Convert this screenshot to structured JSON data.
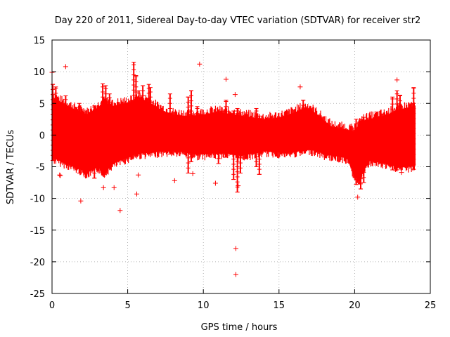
{
  "chart_data": {
    "type": "scatter",
    "title": "Day 220 of 2011, Sidereal Day-to-day VTEC variation (SDTVAR) for receiver str2",
    "xlabel": "GPS time / hours",
    "ylabel": "SDTVAR / TECUs",
    "xlim": [
      0,
      25
    ],
    "ylim": [
      -25,
      15
    ],
    "xticks": [
      0,
      5,
      10,
      15,
      20,
      25
    ],
    "yticks": [
      -25,
      -20,
      -15,
      -10,
      -5,
      0,
      5,
      10,
      15
    ],
    "grid": true,
    "marker": "+",
    "color": "#ff0000",
    "envelope": {
      "x": [
        0,
        0.5,
        1,
        1.5,
        2,
        2.3,
        2.6,
        3,
        3.3,
        3.5,
        3.8,
        4,
        4.5,
        5,
        5.5,
        6,
        6.5,
        7,
        7.5,
        8,
        8.5,
        9,
        9.5,
        10,
        10.5,
        11,
        11.5,
        12,
        12.5,
        13,
        13.5,
        14,
        14.5,
        15,
        15.5,
        16,
        16.5,
        17,
        17.5,
        18,
        18.5,
        19,
        19.5,
        20,
        20.3,
        20.6,
        21,
        21.5,
        22,
        22.5,
        23,
        23.5,
        24
      ],
      "upper": [
        6.0,
        5.2,
        4.6,
        4.0,
        3.5,
        3.2,
        3.6,
        4.2,
        4.8,
        5.0,
        4.8,
        4.5,
        4.8,
        5.0,
        5.4,
        5.6,
        5.0,
        4.2,
        3.6,
        3.2,
        3.0,
        3.0,
        3.0,
        3.2,
        3.4,
        3.5,
        3.4,
        3.2,
        3.0,
        2.8,
        2.6,
        2.4,
        2.5,
        2.7,
        3.0,
        3.5,
        4.0,
        4.2,
        3.2,
        2.2,
        1.2,
        1.0,
        0.8,
        0.5,
        1.5,
        2.2,
        2.5,
        2.8,
        3.0,
        3.5,
        4.0,
        4.2,
        4.6
      ],
      "lower": [
        -3.5,
        -4.0,
        -4.5,
        -5.0,
        -5.5,
        -6.0,
        -5.5,
        -5.0,
        -5.5,
        -5.8,
        -5.0,
        -4.5,
        -4.0,
        -3.5,
        -3.0,
        -2.8,
        -2.8,
        -2.6,
        -2.5,
        -2.5,
        -2.6,
        -2.7,
        -3.0,
        -3.0,
        -2.9,
        -2.8,
        -2.8,
        -3.0,
        -3.2,
        -3.0,
        -2.8,
        -2.5,
        -2.6,
        -2.7,
        -2.8,
        -2.6,
        -2.5,
        -2.2,
        -2.5,
        -3.0,
        -3.2,
        -3.4,
        -3.6,
        -6.5,
        -7.0,
        -5.5,
        -4.0,
        -4.2,
        -4.5,
        -4.8,
        -5.0,
        -5.0,
        -4.8
      ]
    },
    "spikes": [
      {
        "x": 0.05,
        "lo": -4.0,
        "hi": 8.0
      },
      {
        "x": 0.25,
        "lo": -3.0,
        "hi": 7.6
      },
      {
        "x": 0.9,
        "lo": -4.0,
        "hi": 6.2
      },
      {
        "x": 1.8,
        "lo": -6.0,
        "hi": 5.0
      },
      {
        "x": 2.8,
        "lo": -6.8,
        "hi": 4.6
      },
      {
        "x": 3.35,
        "lo": -6.0,
        "hi": 8.1
      },
      {
        "x": 3.55,
        "lo": -5.5,
        "hi": 7.8
      },
      {
        "x": 3.8,
        "lo": -4.5,
        "hi": 6.5
      },
      {
        "x": 5.4,
        "lo": -2.5,
        "hi": 11.5
      },
      {
        "x": 5.55,
        "lo": -2.8,
        "hi": 9.4
      },
      {
        "x": 5.75,
        "lo": -3.0,
        "hi": 7.0
      },
      {
        "x": 6.0,
        "lo": -2.6,
        "hi": 7.8
      },
      {
        "x": 6.4,
        "lo": -3.0,
        "hi": 8.0
      },
      {
        "x": 6.5,
        "lo": -2.8,
        "hi": 7.5
      },
      {
        "x": 7.8,
        "lo": -3.0,
        "hi": 6.5
      },
      {
        "x": 9.0,
        "lo": -6.0,
        "hi": 6.0
      },
      {
        "x": 9.2,
        "lo": -4.2,
        "hi": 7.0
      },
      {
        "x": 9.6,
        "lo": -3.0,
        "hi": 4.5
      },
      {
        "x": 11.0,
        "lo": -4.5,
        "hi": 4.0
      },
      {
        "x": 11.5,
        "lo": -3.5,
        "hi": 5.5
      },
      {
        "x": 12.0,
        "lo": -7.0,
        "hi": 3.8
      },
      {
        "x": 12.25,
        "lo": -9.0,
        "hi": 4.2
      },
      {
        "x": 12.45,
        "lo": -6.0,
        "hi": 3.5
      },
      {
        "x": 13.5,
        "lo": -5.0,
        "hi": 4.2
      },
      {
        "x": 13.7,
        "lo": -6.2,
        "hi": 3.0
      },
      {
        "x": 16.6,
        "lo": -2.5,
        "hi": 5.5
      },
      {
        "x": 20.1,
        "lo": -7.8,
        "hi": 2.5
      },
      {
        "x": 20.4,
        "lo": -8.5,
        "hi": 2.2
      },
      {
        "x": 20.6,
        "lo": -7.5,
        "hi": 2.8
      },
      {
        "x": 22.5,
        "lo": -5.5,
        "hi": 6.0
      },
      {
        "x": 22.8,
        "lo": -5.5,
        "hi": 7.0
      },
      {
        "x": 23.0,
        "lo": -5.0,
        "hi": 6.3
      },
      {
        "x": 23.9,
        "lo": -5.4,
        "hi": 7.5
      }
    ],
    "outliers": [
      {
        "x": 0.9,
        "y": 10.8
      },
      {
        "x": 0.0,
        "y": 9.9
      },
      {
        "x": 0.5,
        "y": -6.3
      },
      {
        "x": 0.55,
        "y": -6.4
      },
      {
        "x": 1.9,
        "y": -10.4
      },
      {
        "x": 3.4,
        "y": -8.3
      },
      {
        "x": 4.1,
        "y": -8.3
      },
      {
        "x": 4.5,
        "y": -11.9
      },
      {
        "x": 5.6,
        "y": -9.3
      },
      {
        "x": 5.7,
        "y": -6.3
      },
      {
        "x": 8.1,
        "y": -7.2
      },
      {
        "x": 9.3,
        "y": -6.1
      },
      {
        "x": 9.75,
        "y": 11.2
      },
      {
        "x": 10.8,
        "y": -7.6
      },
      {
        "x": 11.5,
        "y": 8.8
      },
      {
        "x": 12.1,
        "y": 6.4
      },
      {
        "x": 12.15,
        "y": -17.9
      },
      {
        "x": 12.15,
        "y": -22.0
      },
      {
        "x": 12.3,
        "y": -8.0
      },
      {
        "x": 16.4,
        "y": 7.6
      },
      {
        "x": 20.2,
        "y": -9.8
      },
      {
        "x": 22.8,
        "y": 8.7
      },
      {
        "x": 23.1,
        "y": -5.9
      }
    ]
  }
}
